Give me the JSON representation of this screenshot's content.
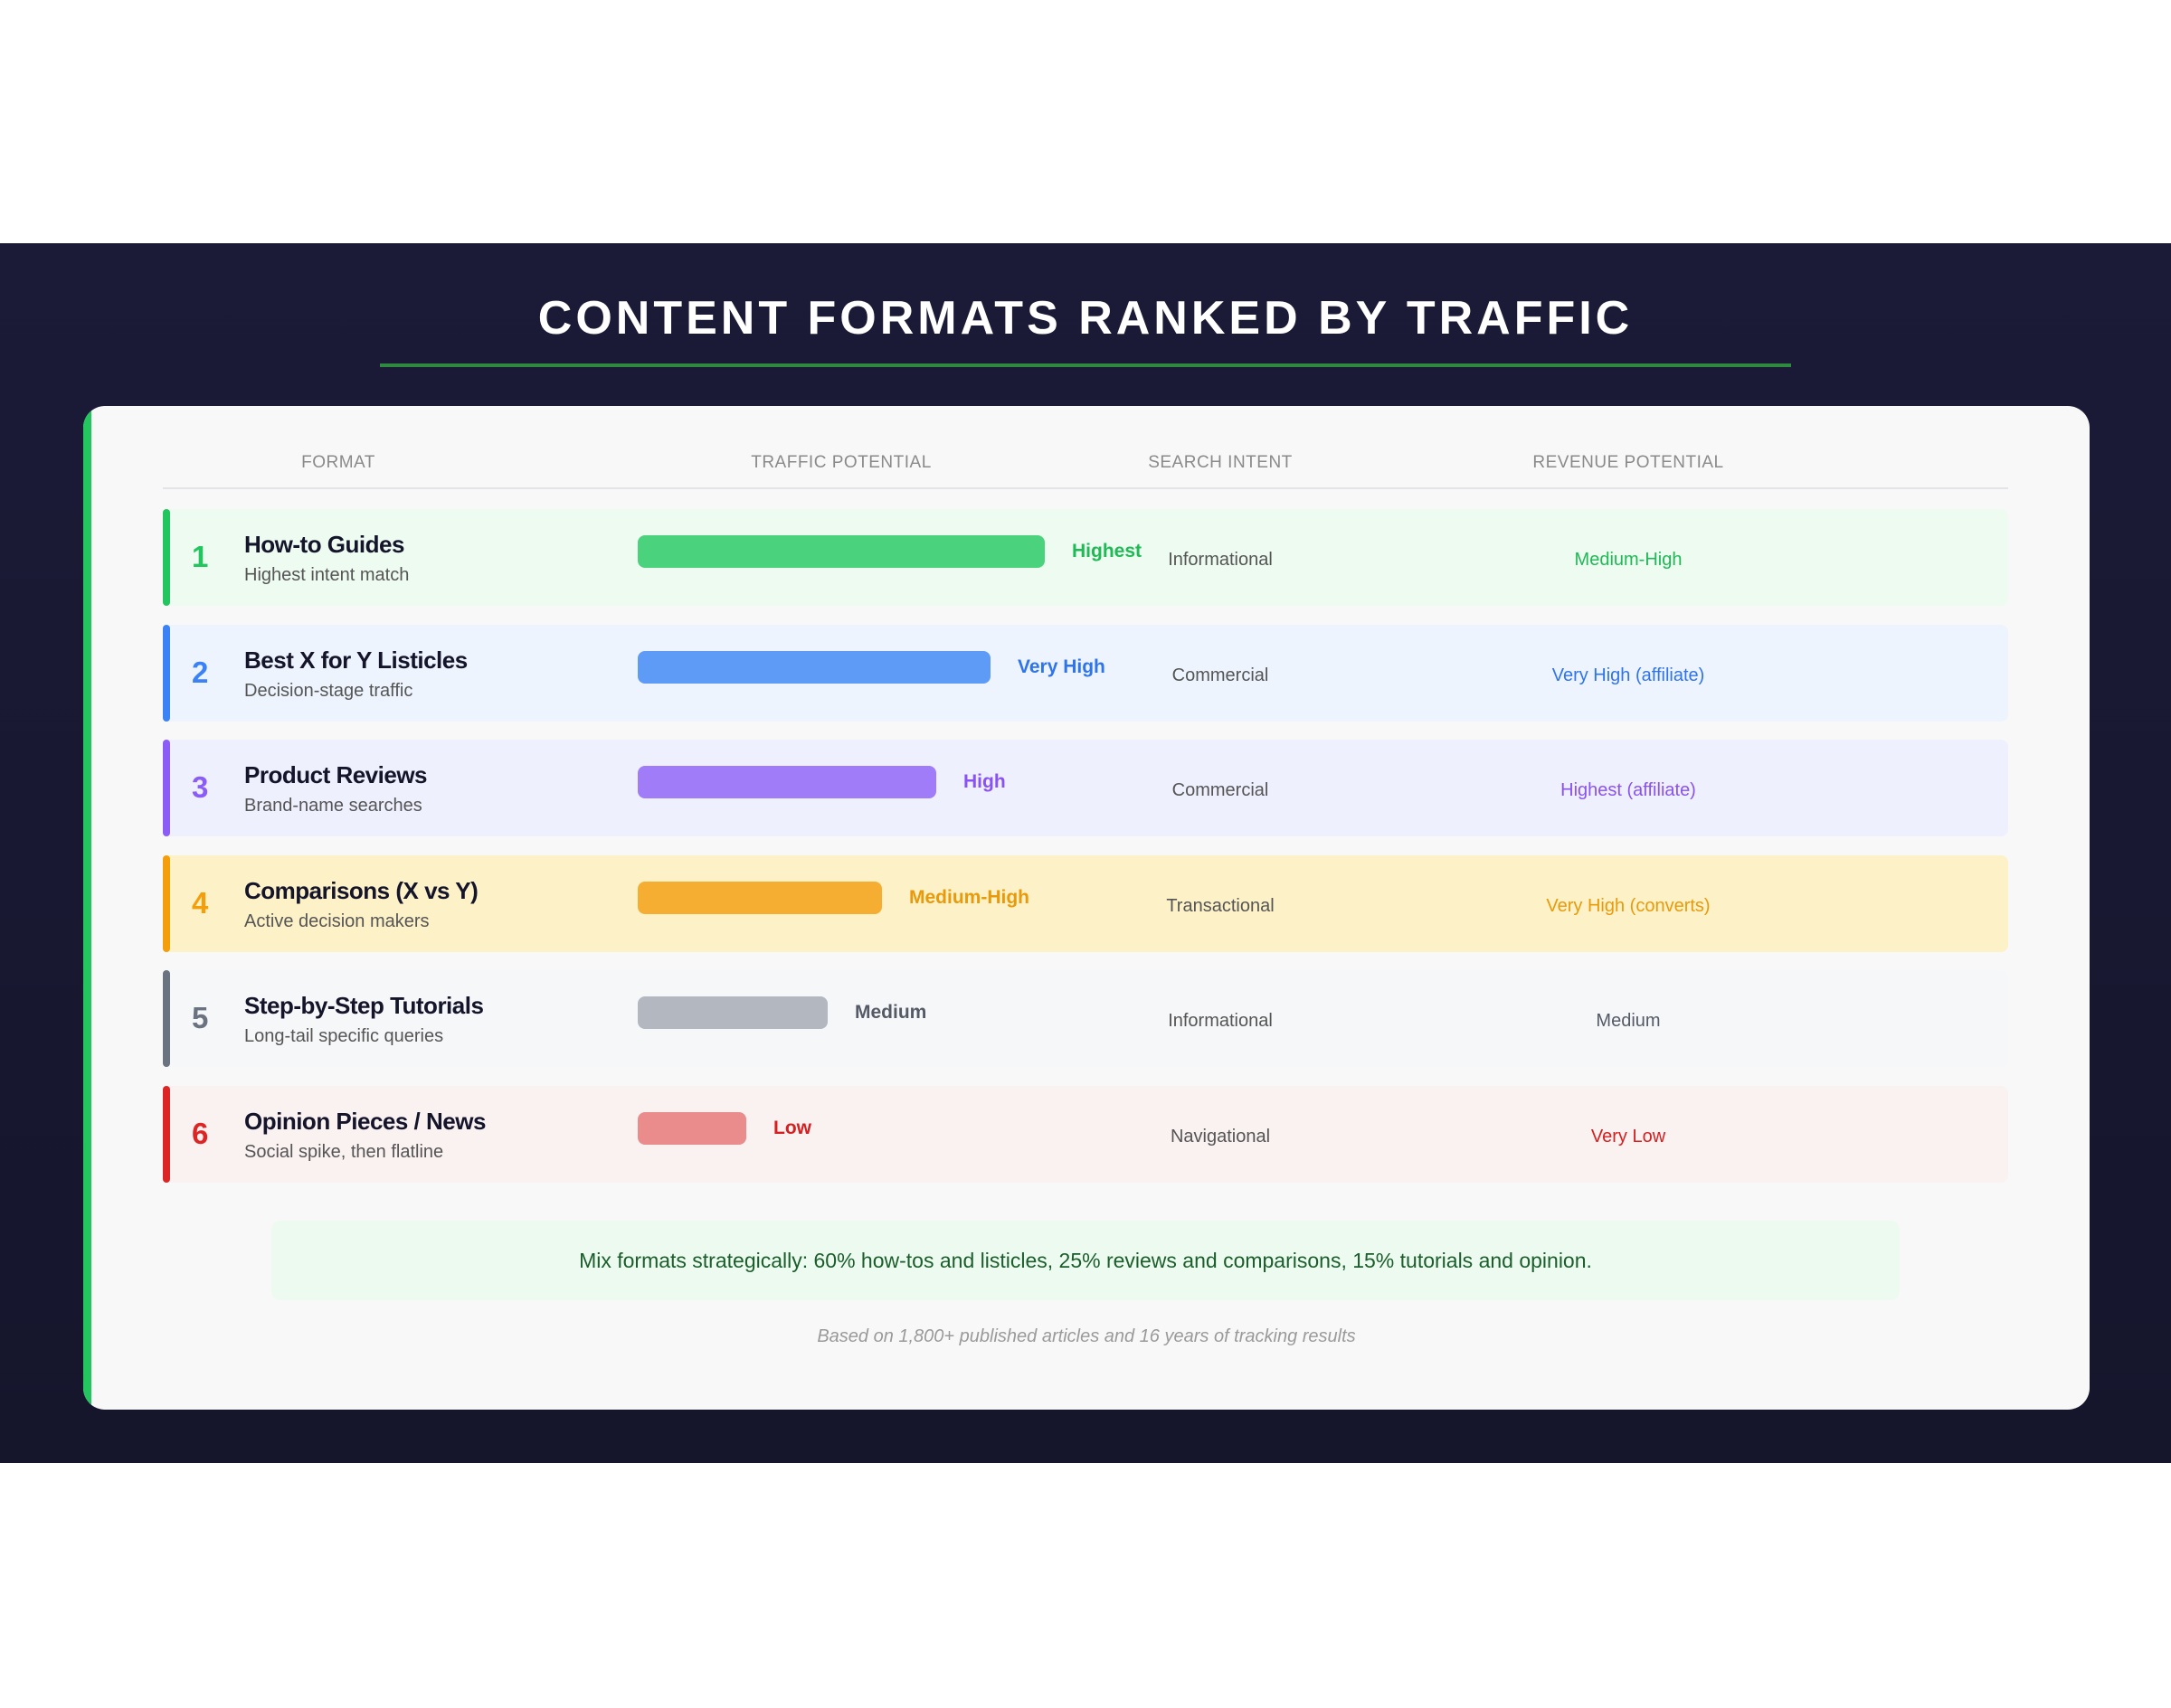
{
  "title": "CONTENT FORMATS RANKED BY TRAFFIC",
  "headers": {
    "format": "FORMAT",
    "traffic": "TRAFFIC POTENTIAL",
    "intent": "SEARCH INTENT",
    "revenue": "REVENUE POTENTIAL"
  },
  "chart_data": {
    "type": "table",
    "title": "CONTENT FORMATS RANKED BY TRAFFIC",
    "columns": [
      "FORMAT",
      "TRAFFIC POTENTIAL",
      "SEARCH INTENT",
      "REVENUE POTENTIAL"
    ],
    "rows": [
      {
        "rank": "1",
        "name": "How-to Guides",
        "sub": "Highest intent match",
        "traffic": "Highest",
        "traffic_level": 1.0,
        "intent": "Informational",
        "revenue": "Medium-High",
        "color": "#22c55e",
        "bar": "#4ad27c",
        "bg": "#edfbf1",
        "textColor": "#1fb955"
      },
      {
        "rank": "2",
        "name": "Best X for Y Listicles",
        "sub": "Decision-stage traffic",
        "traffic": "Very High",
        "traffic_level": 0.867,
        "intent": "Commercial",
        "revenue": "Very High (affiliate)",
        "color": "#3b82f6",
        "bar": "#5d9bf7",
        "bg": "#edf4fe",
        "textColor": "#2f74ea"
      },
      {
        "rank": "3",
        "name": "Product Reviews",
        "sub": "Brand-name searches",
        "traffic": "High",
        "traffic_level": 0.733,
        "intent": "Commercial",
        "revenue": "Highest (affiliate)",
        "color": "#8b5cf6",
        "bar": "#a07cf8",
        "bg": "#eef0fd",
        "textColor": "#8a52f2"
      },
      {
        "rank": "4",
        "name": "Comparisons (X vs Y)",
        "sub": "Active decision makers",
        "traffic": "Medium-High",
        "traffic_level": 0.6,
        "intent": "Transactional",
        "revenue": "Very High (converts)",
        "color": "#f59e0b",
        "bar": "#f5ae32",
        "bg": "#fdf1c7",
        "textColor": "#e99a0a"
      },
      {
        "rank": "5",
        "name": "Step-by-Step Tutorials",
        "sub": "Long-tail specific queries",
        "traffic": "Medium",
        "traffic_level": 0.467,
        "intent": "Informational",
        "revenue": "Medium",
        "color": "#6b7280",
        "bar": "#b3b7c0",
        "bg": "#f6f7f9",
        "textColor": "#555a66"
      },
      {
        "rank": "6",
        "name": "Opinion Pieces / News",
        "sub": "Social spike, then flatline",
        "traffic": "Low",
        "traffic_level": 0.267,
        "intent": "Navigational",
        "revenue": "Very Low",
        "color": "#dc2626",
        "bar": "#ea8c8c",
        "bg": "#faf1f1",
        "textColor": "#d42020"
      }
    ]
  },
  "note": "Mix formats strategically: 60% how-tos and listicles, 25% reviews and comparisons, 15% tutorials and opinion.",
  "source": "Based on 1,800+ published articles and 16 years of tracking results"
}
